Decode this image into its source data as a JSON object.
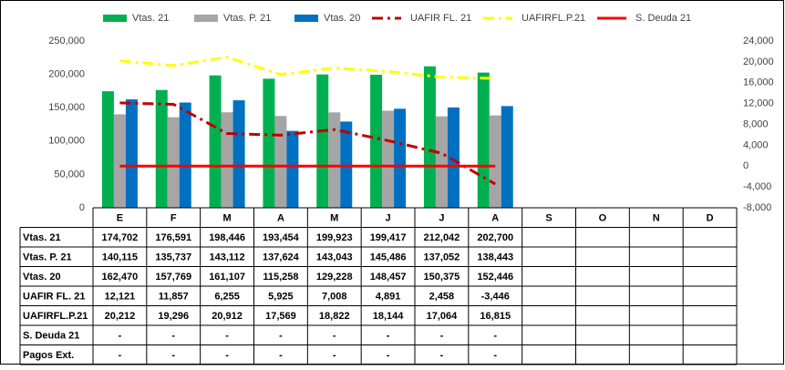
{
  "chart_data": {
    "type": "bar",
    "categories": [
      "E",
      "F",
      "M",
      "A",
      "M",
      "J",
      "J",
      "A",
      "S",
      "O",
      "N",
      "D"
    ],
    "ylim": [
      0,
      250000
    ],
    "yticks": [
      {
        "value": 0,
        "label": "0"
      },
      {
        "value": 50000,
        "label": "50,000"
      },
      {
        "value": 100000,
        "label": "100,000"
      },
      {
        "value": 150000,
        "label": "150,000"
      },
      {
        "value": 200000,
        "label": "200,000"
      },
      {
        "value": 250000,
        "label": "250,000"
      }
    ],
    "y2lim": [
      -8000,
      24000
    ],
    "y2ticks": [
      {
        "value": -8000,
        "label": "-8,000"
      },
      {
        "value": -4000,
        "label": "-4,000"
      },
      0,
      {
        "value": 4000,
        "label": "4,000"
      },
      {
        "value": 8000,
        "label": "8,000"
      },
      {
        "value": 12000,
        "label": "12,000"
      },
      {
        "value": 16000,
        "label": "16,000"
      },
      {
        "value": 20000,
        "label": "20,000"
      },
      {
        "value": 24000,
        "label": "24,000"
      }
    ],
    "grid": false,
    "legend": "top",
    "series": [
      {
        "name": "Vtas. 21",
        "type": "bar",
        "color": "#00b050",
        "values": [
          174702,
          176591,
          198446,
          193454,
          199923,
          199417,
          212042,
          202700,
          null,
          null,
          null,
          null
        ],
        "value_labels": [
          "174,702",
          "176,591",
          "198,446",
          "193,454",
          "199,923",
          "199,417",
          "212,042",
          "202,700",
          null,
          null,
          null,
          null
        ]
      },
      {
        "name": "Vtas. P. 21",
        "type": "bar",
        "color": "#a5a5a5",
        "values": [
          140115,
          135737,
          143112,
          137624,
          143043,
          145486,
          137052,
          138443,
          null,
          null,
          null,
          null
        ],
        "value_labels": [
          "140,115",
          "135,737",
          "143,112",
          "137,624",
          "143,043",
          "145,486",
          "137,052",
          "138,443",
          null,
          null,
          null,
          null
        ]
      },
      {
        "name": "Vtas. 20",
        "type": "bar",
        "color": "#0070c0",
        "values": [
          162470,
          157769,
          161107,
          115258,
          129228,
          148457,
          150375,
          152446,
          null,
          null,
          null,
          null
        ],
        "value_labels": [
          "162,470",
          "157,769",
          "161,107",
          "115,258",
          "129,228",
          "148,457",
          "150,375",
          "152,446",
          null,
          null,
          null,
          null
        ]
      },
      {
        "name": "UAFIR FL. 21",
        "type": "line",
        "axis": "y2",
        "dash": "dashdot",
        "color": "#c00000",
        "values": [
          12121,
          11857,
          6255,
          5925,
          7008,
          4891,
          2458,
          -3446,
          null,
          null,
          null,
          null
        ],
        "value_labels": [
          "12,121",
          "11,857",
          "6,255",
          "5,925",
          "7,008",
          "4,891",
          "2,458",
          "-3,446",
          null,
          null,
          null,
          null
        ]
      },
      {
        "name": "UAFIRFL.P.21",
        "type": "line",
        "axis": "y2",
        "dash": "dashdot",
        "color": "#ffff00",
        "values": [
          20212,
          19296,
          20912,
          17569,
          18822,
          18144,
          17064,
          16815,
          null,
          null,
          null,
          null
        ],
        "value_labels": [
          "20,212",
          "19,296",
          "20,912",
          "17,569",
          "18,822",
          "18,144",
          "17,064",
          "16,815",
          null,
          null,
          null,
          null
        ]
      },
      {
        "name": "S. Deuda 21",
        "type": "line",
        "axis": "y2",
        "dash": "solid",
        "color": "#ff0000",
        "values": [
          0,
          0,
          0,
          0,
          0,
          0,
          0,
          0,
          null,
          null,
          null,
          null
        ],
        "value_labels": [
          "-",
          "-",
          "-",
          "-",
          "-",
          "-",
          "-",
          "-",
          null,
          null,
          null,
          null
        ]
      },
      {
        "name": "Pagos Ext.",
        "type": "table",
        "legend": false,
        "values": [
          0,
          0,
          0,
          0,
          0,
          0,
          0,
          0,
          null,
          null,
          null,
          null
        ],
        "value_labels": [
          "-",
          "-",
          "-",
          "-",
          "-",
          "-",
          "-",
          "-",
          null,
          null,
          null,
          null
        ]
      }
    ]
  }
}
